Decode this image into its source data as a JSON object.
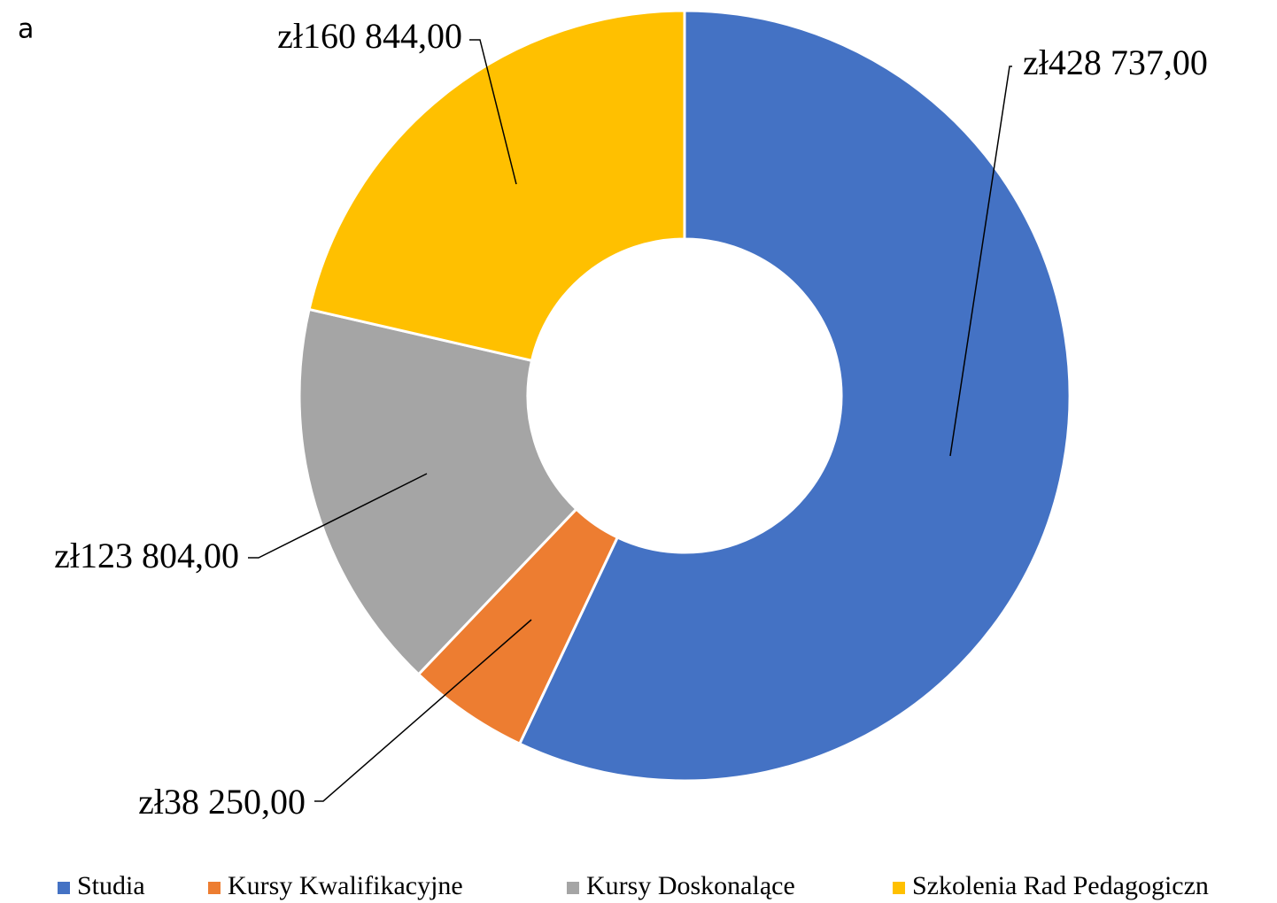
{
  "chart_data": {
    "type": "donut",
    "title": "a",
    "categories": [
      "Studia",
      "Kursy Kwalifikacyjne",
      "Kursy Doskonalące",
      "Szkolenia Rad Pedagogiczn"
    ],
    "values": [
      428737,
      38250,
      123804,
      160844
    ],
    "value_labels": [
      "zł428 737,00",
      "zł38 250,00",
      "zł123 804,00",
      "zł160 844,00"
    ],
    "colors": [
      "#4472c4",
      "#ed7d31",
      "#a5a5a5",
      "#ffc000"
    ],
    "legend": "bottom"
  }
}
